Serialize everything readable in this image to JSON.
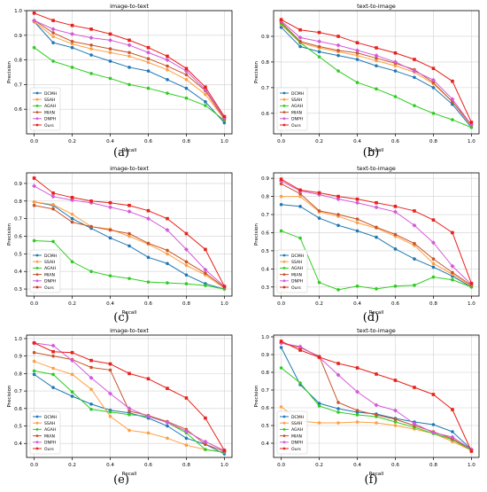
{
  "chart_data": [
    {
      "type": "line",
      "panel_label": "(a)",
      "title": "image-to-text",
      "xlabel": "Recall",
      "ylabel": "Precision",
      "xlim": [
        -0.04,
        1.04
      ],
      "ylim": [
        0.5,
        1.0
      ],
      "xticks": [
        "0.0",
        "0.2",
        "0.4",
        "0.6",
        "0.8",
        "1.0"
      ],
      "yticks": [
        "0.6",
        "0.7",
        "0.8",
        "0.9",
        "1.0"
      ],
      "ytick_values": [
        0.6,
        0.7,
        0.8,
        0.9,
        1.0
      ],
      "grid": true,
      "legend_position": "lower left",
      "x": [
        0.0,
        0.1,
        0.2,
        0.3,
        0.4,
        0.5,
        0.6,
        0.7,
        0.8,
        0.9,
        1.0
      ],
      "series": [
        {
          "name": "DCMH",
          "values": [
            0.955,
            0.87,
            0.85,
            0.82,
            0.795,
            0.77,
            0.755,
            0.72,
            0.685,
            0.63,
            0.545
          ]
        },
        {
          "name": "SSAH",
          "values": [
            0.955,
            0.895,
            0.865,
            0.845,
            0.83,
            0.815,
            0.79,
            0.76,
            0.72,
            0.66,
            0.56
          ]
        },
        {
          "name": "AGAH",
          "values": [
            0.85,
            0.795,
            0.77,
            0.745,
            0.725,
            0.7,
            0.685,
            0.665,
            0.645,
            0.615,
            0.555
          ]
        },
        {
          "name": "MIAN",
          "values": [
            0.96,
            0.91,
            0.875,
            0.86,
            0.845,
            0.83,
            0.805,
            0.775,
            0.74,
            0.675,
            0.56
          ]
        },
        {
          "name": "DNPH",
          "values": [
            0.96,
            0.925,
            0.905,
            0.89,
            0.88,
            0.86,
            0.83,
            0.8,
            0.755,
            0.68,
            0.565
          ]
        },
        {
          "name": "Ours",
          "values": [
            0.99,
            0.96,
            0.94,
            0.925,
            0.905,
            0.88,
            0.85,
            0.815,
            0.765,
            0.69,
            0.57
          ]
        }
      ]
    },
    {
      "type": "line",
      "panel_label": "(b)",
      "title": "text-to-image",
      "xlabel": "Recall",
      "ylabel": "Precision",
      "xlim": [
        -0.04,
        1.04
      ],
      "ylim": [
        0.52,
        1.0
      ],
      "xticks": [
        "0.0",
        "0.2",
        "0.4",
        "0.6",
        "0.8",
        "1.0"
      ],
      "yticks": [
        "0.6",
        "0.7",
        "0.8",
        "0.9"
      ],
      "ytick_values": [
        0.6,
        0.7,
        0.8,
        0.9
      ],
      "grid": true,
      "legend_position": "lower left",
      "x": [
        0.0,
        0.1,
        0.2,
        0.3,
        0.4,
        0.5,
        0.6,
        0.7,
        0.8,
        0.9,
        1.0
      ],
      "series": [
        {
          "name": "DCMH",
          "values": [
            0.935,
            0.86,
            0.84,
            0.825,
            0.81,
            0.785,
            0.765,
            0.74,
            0.7,
            0.635,
            0.545
          ]
        },
        {
          "name": "SSAH",
          "values": [
            0.945,
            0.875,
            0.855,
            0.84,
            0.825,
            0.805,
            0.785,
            0.76,
            0.715,
            0.645,
            0.55
          ]
        },
        {
          "name": "AGAH",
          "values": [
            0.95,
            0.875,
            0.82,
            0.765,
            0.72,
            0.695,
            0.665,
            0.63,
            0.6,
            0.575,
            0.545
          ]
        },
        {
          "name": "MIAN",
          "values": [
            0.955,
            0.88,
            0.86,
            0.845,
            0.835,
            0.815,
            0.795,
            0.77,
            0.72,
            0.645,
            0.555
          ]
        },
        {
          "name": "DNPH",
          "values": [
            0.96,
            0.895,
            0.88,
            0.865,
            0.845,
            0.825,
            0.8,
            0.765,
            0.73,
            0.655,
            0.555
          ]
        },
        {
          "name": "Ours",
          "values": [
            0.965,
            0.925,
            0.915,
            0.9,
            0.875,
            0.855,
            0.835,
            0.81,
            0.775,
            0.725,
            0.565
          ]
        }
      ]
    },
    {
      "type": "line",
      "panel_label": "(c)",
      "title": "image-to-text",
      "xlabel": "Recall",
      "ylabel": "Precision",
      "xlim": [
        -0.04,
        1.04
      ],
      "ylim": [
        0.26,
        0.96
      ],
      "xticks": [
        "0.0",
        "0.2",
        "0.4",
        "0.6",
        "0.8",
        "1.0"
      ],
      "yticks": [
        "0.3",
        "0.4",
        "0.5",
        "0.6",
        "0.7",
        "0.8",
        "0.9"
      ],
      "ytick_values": [
        0.3,
        0.4,
        0.5,
        0.6,
        0.7,
        0.8,
        0.9
      ],
      "grid": true,
      "legend_position": "lower left",
      "x": [
        0.0,
        0.1,
        0.2,
        0.3,
        0.4,
        0.5,
        0.6,
        0.7,
        0.8,
        0.9,
        1.0
      ],
      "series": [
        {
          "name": "DCMH",
          "values": [
            0.795,
            0.775,
            0.7,
            0.645,
            0.59,
            0.545,
            0.48,
            0.445,
            0.38,
            0.33,
            0.3
          ]
        },
        {
          "name": "SSAH",
          "values": [
            0.795,
            0.78,
            0.725,
            0.655,
            0.64,
            0.6,
            0.555,
            0.5,
            0.435,
            0.38,
            0.305
          ]
        },
        {
          "name": "AGAH",
          "values": [
            0.575,
            0.57,
            0.455,
            0.4,
            0.375,
            0.36,
            0.34,
            0.335,
            0.33,
            0.32,
            0.3
          ]
        },
        {
          "name": "MIAN",
          "values": [
            0.775,
            0.755,
            0.68,
            0.655,
            0.635,
            0.615,
            0.56,
            0.52,
            0.455,
            0.39,
            0.31
          ]
        },
        {
          "name": "DNPH",
          "values": [
            0.885,
            0.825,
            0.805,
            0.79,
            0.765,
            0.74,
            0.7,
            0.635,
            0.525,
            0.41,
            0.315
          ]
        },
        {
          "name": "Ours",
          "values": [
            0.93,
            0.845,
            0.82,
            0.8,
            0.79,
            0.775,
            0.745,
            0.7,
            0.615,
            0.525,
            0.315
          ]
        }
      ]
    },
    {
      "type": "line",
      "panel_label": "(d)",
      "title": "text-to-image",
      "xlabel": "Recall",
      "ylabel": "Precision",
      "xlim": [
        -0.04,
        1.04
      ],
      "ylim": [
        0.25,
        0.93
      ],
      "xticks": [
        "0.0",
        "0.2",
        "0.4",
        "0.6",
        "0.8",
        "1.0"
      ],
      "yticks": [
        "0.3",
        "0.4",
        "0.5",
        "0.6",
        "0.7",
        "0.8",
        "0.9"
      ],
      "ytick_values": [
        0.3,
        0.4,
        0.5,
        0.6,
        0.7,
        0.8,
        0.9
      ],
      "grid": true,
      "legend_position": "lower left",
      "x": [
        0.0,
        0.1,
        0.2,
        0.3,
        0.4,
        0.5,
        0.6,
        0.7,
        0.8,
        0.9,
        1.0
      ],
      "series": [
        {
          "name": "DCMH",
          "values": [
            0.755,
            0.745,
            0.68,
            0.64,
            0.61,
            0.575,
            0.51,
            0.455,
            0.41,
            0.36,
            0.3
          ]
        },
        {
          "name": "SSAH",
          "values": [
            0.8,
            0.8,
            0.715,
            0.69,
            0.655,
            0.625,
            0.58,
            0.53,
            0.43,
            0.37,
            0.305
          ]
        },
        {
          "name": "AGAH",
          "values": [
            0.61,
            0.57,
            0.325,
            0.285,
            0.305,
            0.29,
            0.305,
            0.31,
            0.355,
            0.34,
            0.3
          ]
        },
        {
          "name": "MIAN",
          "values": [
            0.87,
            0.815,
            0.72,
            0.7,
            0.675,
            0.63,
            0.59,
            0.54,
            0.455,
            0.38,
            0.31
          ]
        },
        {
          "name": "DNPH",
          "values": [
            0.885,
            0.83,
            0.81,
            0.785,
            0.765,
            0.74,
            0.715,
            0.64,
            0.545,
            0.415,
            0.315
          ]
        },
        {
          "name": "Ours",
          "values": [
            0.895,
            0.835,
            0.82,
            0.8,
            0.785,
            0.765,
            0.745,
            0.72,
            0.67,
            0.6,
            0.32
          ]
        }
      ]
    },
    {
      "type": "line",
      "panel_label": "(e)",
      "title": "image-to-text",
      "xlabel": "Recall",
      "ylabel": "Precision",
      "xlim": [
        -0.04,
        1.04
      ],
      "ylim": [
        0.32,
        1.02
      ],
      "xticks": [
        "0.0",
        "0.2",
        "0.4",
        "0.6",
        "0.8",
        "1.0"
      ],
      "yticks": [
        "0.4",
        "0.5",
        "0.6",
        "0.7",
        "0.8",
        "0.9",
        "1.0"
      ],
      "ytick_values": [
        0.4,
        0.5,
        0.6,
        0.7,
        0.8,
        0.9,
        1.0
      ],
      "grid": true,
      "legend_position": "lower left",
      "x": [
        0.0,
        0.1,
        0.2,
        0.3,
        0.4,
        0.5,
        0.6,
        0.7,
        0.8,
        0.9,
        1.0
      ],
      "series": [
        {
          "name": "DCMH",
          "values": [
            0.795,
            0.72,
            0.67,
            0.625,
            0.59,
            0.575,
            0.545,
            0.5,
            0.43,
            0.395,
            0.34
          ]
        },
        {
          "name": "SSAH",
          "values": [
            0.87,
            0.83,
            0.795,
            0.71,
            0.555,
            0.475,
            0.46,
            0.43,
            0.39,
            0.365,
            0.35
          ]
        },
        {
          "name": "AGAH",
          "values": [
            0.815,
            0.795,
            0.695,
            0.595,
            0.58,
            0.565,
            0.555,
            0.52,
            0.46,
            0.365,
            0.35
          ]
        },
        {
          "name": "MIAN",
          "values": [
            0.92,
            0.9,
            0.88,
            0.835,
            0.82,
            0.585,
            0.56,
            0.525,
            0.48,
            0.395,
            0.355
          ]
        },
        {
          "name": "DNPH",
          "values": [
            0.975,
            0.96,
            0.875,
            0.775,
            0.685,
            0.6,
            0.555,
            0.52,
            0.47,
            0.41,
            0.36
          ]
        },
        {
          "name": "Ours",
          "values": [
            0.975,
            0.925,
            0.92,
            0.875,
            0.855,
            0.8,
            0.77,
            0.715,
            0.66,
            0.545,
            0.36
          ]
        }
      ]
    },
    {
      "type": "line",
      "panel_label": "(f)",
      "title": "text-to-image",
      "xlabel": "Recall",
      "ylabel": "Precision",
      "xlim": [
        -0.04,
        1.04
      ],
      "ylim": [
        0.32,
        1.01
      ],
      "xticks": [
        "0.0",
        "0.2",
        "0.4",
        "0.6",
        "0.8",
        "1.0"
      ],
      "yticks": [
        "0.4",
        "0.5",
        "0.6",
        "0.7",
        "0.8",
        "0.9",
        "1.0"
      ],
      "ytick_values": [
        0.4,
        0.5,
        0.6,
        0.7,
        0.8,
        0.9,
        1.0
      ],
      "grid": true,
      "legend_position": "lower left",
      "x": [
        0.0,
        0.1,
        0.2,
        0.3,
        0.4,
        0.5,
        0.6,
        0.7,
        0.8,
        0.9,
        1.0
      ],
      "series": [
        {
          "name": "DCMH",
          "values": [
            0.94,
            0.73,
            0.625,
            0.595,
            0.575,
            0.565,
            0.54,
            0.52,
            0.505,
            0.465,
            0.365
          ]
        },
        {
          "name": "SSAH",
          "values": [
            0.605,
            0.525,
            0.515,
            0.515,
            0.52,
            0.515,
            0.5,
            0.48,
            0.455,
            0.41,
            0.36
          ]
        },
        {
          "name": "AGAH",
          "values": [
            0.825,
            0.74,
            0.61,
            0.575,
            0.56,
            0.55,
            0.52,
            0.49,
            0.455,
            0.42,
            0.36
          ]
        },
        {
          "name": "MIAN",
          "values": [
            0.965,
            0.94,
            0.89,
            0.63,
            0.585,
            0.56,
            0.535,
            0.5,
            0.465,
            0.425,
            0.365
          ]
        },
        {
          "name": "DNPH",
          "values": [
            0.965,
            0.945,
            0.885,
            0.785,
            0.69,
            0.615,
            0.585,
            0.51,
            0.46,
            0.435,
            0.365
          ]
        },
        {
          "name": "Ours",
          "values": [
            0.975,
            0.925,
            0.885,
            0.85,
            0.825,
            0.79,
            0.755,
            0.715,
            0.675,
            0.59,
            0.355
          ]
        }
      ]
    }
  ],
  "series_colors": {
    "DCMH": "#1f77b4",
    "SSAH": "#ff7f0e",
    "AGAH": "#2ca02c",
    "MIAN": "#d62728",
    "DNPH": "#e377c2",
    "Ours": "#ff0000"
  },
  "series_colors_list": [
    "#1f77b4",
    "#ff9f40",
    "#2ecc1f",
    "#c8552a",
    "#d35bd9",
    "#e8201a"
  ]
}
